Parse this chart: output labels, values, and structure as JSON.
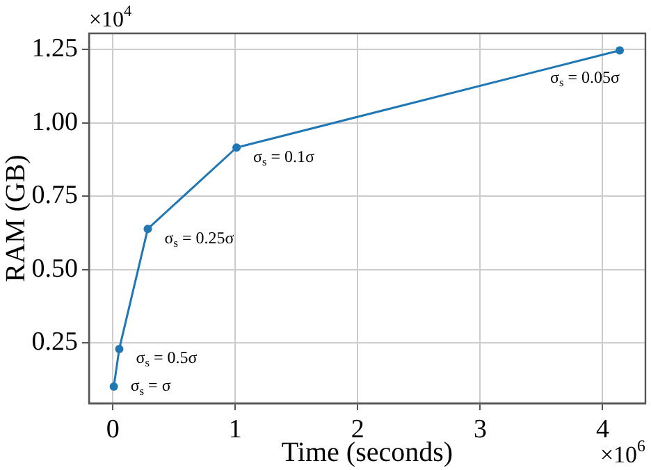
{
  "chart_data": {
    "type": "line",
    "xlabel": "Time (seconds)",
    "ylabel": "RAM (GB)",
    "x": [
      0.0075,
      0.052,
      0.285,
      1.01,
      4.14
    ],
    "series": [
      {
        "color": "#1f77b4",
        "values": [
          0.102,
          0.23,
          0.639,
          0.916,
          1.247
        ]
      }
    ],
    "xlim": [
      -0.195,
      4.35
    ],
    "ylim": [
      0.045,
      1.305
    ],
    "xticks": [
      0,
      1,
      2,
      3,
      4
    ],
    "yticks": [
      {
        "value": 0.25,
        "label": "0.25"
      },
      {
        "value": 0.5,
        "label": "0.50"
      },
      {
        "value": 0.75,
        "label": "0.75"
      },
      {
        "value": 1,
        "label": "1.00"
      },
      {
        "value": 1.25,
        "label": "1.25"
      }
    ],
    "grid": true,
    "legend": false,
    "marker": "circle",
    "line_style": "solid",
    "annotations": [
      "×10$^{4}$",
      "×10$^{6}$",
      {
        "text": "σ$_{s}$ = σ",
        "x": 0.0075,
        "y": 0.102
      },
      {
        "text": "σ$_{s}$ = 0.5σ",
        "x": 0.052,
        "y": 0.23
      },
      {
        "text": "σ$_{s}$ = 0.25σ",
        "x": 0.285,
        "y": 0.639
      },
      {
        "text": "σ$_{s}$ = 0.1σ",
        "x": 1.01,
        "y": 0.916
      },
      {
        "text": "σ$_{s}$ = 0.05σ",
        "x": 4.14,
        "y": 1.247
      }
    ]
  }
}
